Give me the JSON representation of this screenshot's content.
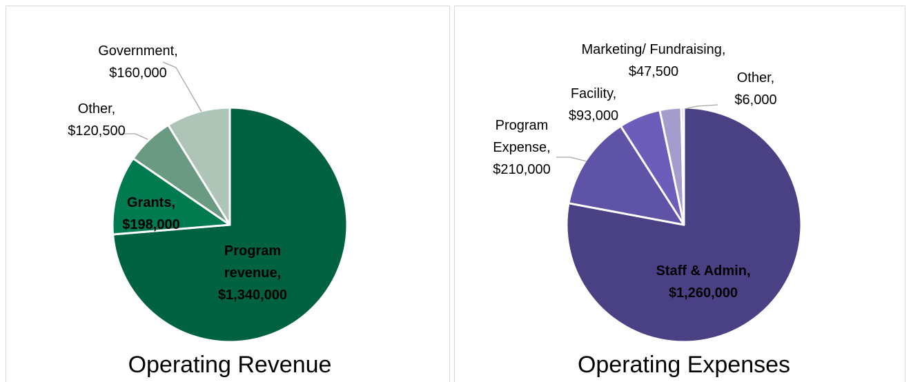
{
  "chart_data": [
    {
      "type": "pie",
      "title": "Operating Revenue",
      "values": [
        1340000,
        198000,
        120500,
        160000
      ],
      "value_labels": [
        "Program revenue, $1,340,000",
        "Grants, $198,000",
        "Other, $120,500",
        "Government, $160,000"
      ],
      "colors": [
        "#006241",
        "#007a4f",
        "#6b9a82",
        "#aec4b6"
      ]
    },
    {
      "type": "pie",
      "title": "Operating Expenses",
      "values": [
        1260000,
        210000,
        93000,
        47500,
        6000
      ],
      "value_labels": [
        "Staff & Admin, $1,260,000",
        "Program Expense, $210,000",
        "Facility, $93,000",
        "Marketing/ Fundraising, $47,500",
        "Other, $6,000"
      ],
      "colors": [
        "#4a4185",
        "#5f53a7",
        "#6c5dbb",
        "#a49ccd",
        "#c6c2e1"
      ]
    }
  ]
}
